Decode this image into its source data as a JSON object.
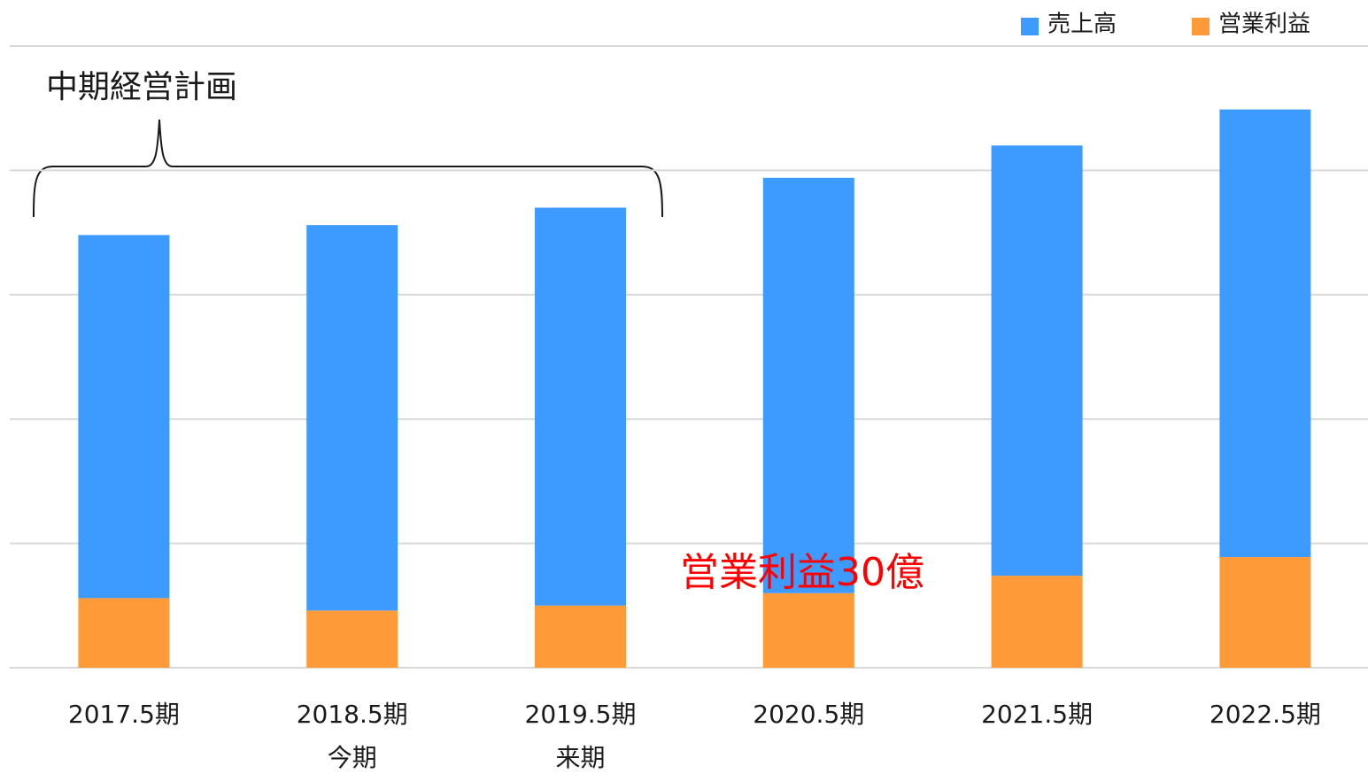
{
  "chart_data": {
    "type": "stacked_bar",
    "title": "中期経営計画",
    "annotation": "営業利益30億",
    "annotation_color": "#ff0000",
    "categories": [
      "2017.5期",
      "2018.5期",
      "2019.5期",
      "2020.5期",
      "2021.5期",
      "2022.5期"
    ],
    "sublabels": [
      null,
      "今期",
      "来期",
      null,
      null,
      null
    ],
    "series": [
      {
        "name": "売上高",
        "color": "#3d9bff",
        "values": [
          146,
          155,
          160,
          167,
          173,
          180
        ]
      },
      {
        "name": "営業利益",
        "color": "#ff9a38",
        "values": [
          28,
          23,
          25,
          30,
          37,
          44.5
        ]
      }
    ],
    "ylim": [
      0,
      250
    ],
    "yticks": [
      0,
      50,
      100,
      150,
      200,
      250
    ],
    "grid": true,
    "legend": "top-right"
  }
}
